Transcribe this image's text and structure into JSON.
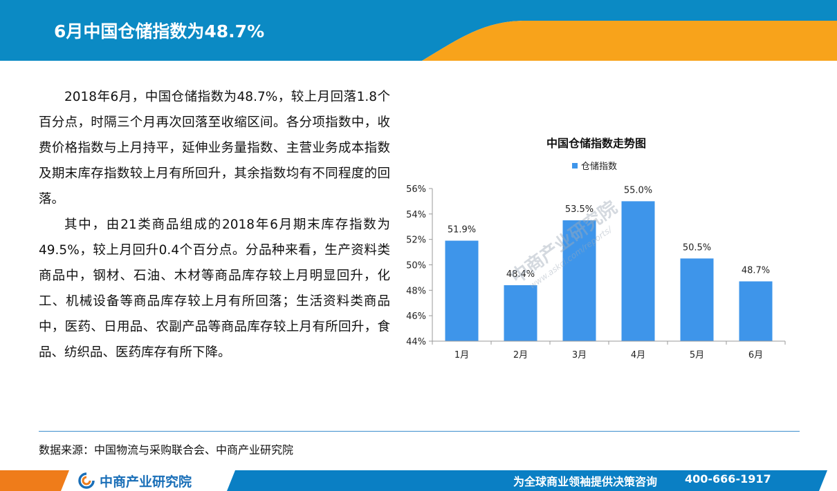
{
  "header": {
    "title": "6月中国仓储指数为48.7%"
  },
  "body": {
    "paragraphs": [
      "2018年6月，中国仓储指数为48.7%，较上月回落1.8个百分点，时隔三个月再次回落至收缩区间。各分项指数中，收费价格指数与上月持平，延伸业务量指数、主营业务成本指数及期末库存指数较上月有所回升，其余指数均有不同程度的回落。",
      "其中，由21类商品组成的2018年6月期末库存指数为49.5%，较上月回升0.4个百分点。分品种来看，生产资料类商品中，钢材、石油、木材等商品库存较上月明显回升，化工、机械设备等商品库存较上月有所回落；生活资料类商品中，医药、日用品、农副产品等商品库存较上月有所回升，食品、纺织品、医药库存有所下降。"
    ]
  },
  "chart_data": {
    "type": "bar",
    "title": "中国仓储指数走势图",
    "categories": [
      "1月",
      "2月",
      "3月",
      "4月",
      "5月",
      "6月"
    ],
    "series": [
      {
        "name": "仓储指数",
        "values": [
          51.9,
          48.4,
          53.5,
          55.0,
          50.5,
          48.7
        ],
        "color": "#3e95ea"
      }
    ],
    "data_labels": [
      "51.9%",
      "48.4%",
      "53.5%",
      "55.0%",
      "50.5%",
      "48.7%"
    ],
    "ylim": [
      44,
      56
    ],
    "yticks": [
      44,
      46,
      48,
      50,
      52,
      54,
      56
    ],
    "ytick_labels": [
      "44%",
      "46%",
      "48%",
      "50%",
      "52%",
      "54%",
      "56%"
    ],
    "legend_position": "top",
    "grid": false
  },
  "source": {
    "text": "数据来源：中国物流与采购联合会、中商产业研究院"
  },
  "footer": {
    "logo_text": "中商产业研究院",
    "slogan": "为全球商业领袖提供决策咨询",
    "phone": "400-666-1917"
  },
  "watermark": {
    "name": "中商产业研究院",
    "url": "www.askci.com/reports/"
  },
  "colors": {
    "blue": "#0b8ac4",
    "orange": "#f8a31b",
    "bar": "#3e95ea",
    "footer_orange": "#ef7c1a",
    "footer_blue": "#0a7fc4"
  },
  "icons": [
    "askci-logo-icon"
  ]
}
